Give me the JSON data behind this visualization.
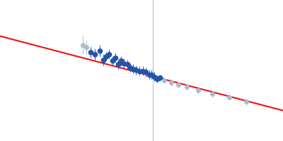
{
  "background_color": "#ffffff",
  "vertical_line_x": 220,
  "vertical_line_color": "#aaccee",
  "fit_line": {
    "x_start": -50,
    "x_end": 450,
    "y_start": 82,
    "y_end": 148,
    "color": "#ee1111",
    "linewidth": 1.5
  },
  "blue_points": {
    "x": [
      110,
      118,
      126,
      132,
      138,
      143,
      149,
      154,
      159,
      164,
      169,
      175,
      180,
      185,
      190,
      196,
      203,
      208,
      214,
      218,
      222,
      227,
      232
    ],
    "y": [
      96,
      98,
      95,
      103,
      100,
      98,
      104,
      101,
      107,
      104,
      106,
      107,
      110,
      111,
      112,
      113,
      113,
      114,
      116,
      116,
      118,
      120,
      119
    ],
    "yerr": [
      5,
      5,
      5,
      5,
      4,
      4,
      4,
      4,
      4,
      4,
      4,
      4,
      4,
      4,
      4,
      4,
      4,
      4,
      4,
      4,
      4,
      3,
      3
    ],
    "color": "#2255aa",
    "markersize": 4.5
  },
  "gray_points_left": {
    "x": [
      96,
      103
    ],
    "y": [
      90,
      92
    ],
    "yerr": [
      8,
      6
    ],
    "color": "#aabbcc",
    "markersize": 4.0
  },
  "gray_points_right": {
    "x": [
      240,
      252,
      265,
      280,
      300,
      325,
      355,
      385
    ],
    "y": [
      121,
      123,
      125,
      127,
      130,
      133,
      136,
      140
    ],
    "yerr": [
      3,
      3,
      3,
      3,
      3,
      3,
      3,
      3
    ],
    "color": "#aabbcc",
    "markersize": 4.0
  },
  "xlim": [
    -50,
    450
  ],
  "ylim": [
    50,
    175
  ]
}
